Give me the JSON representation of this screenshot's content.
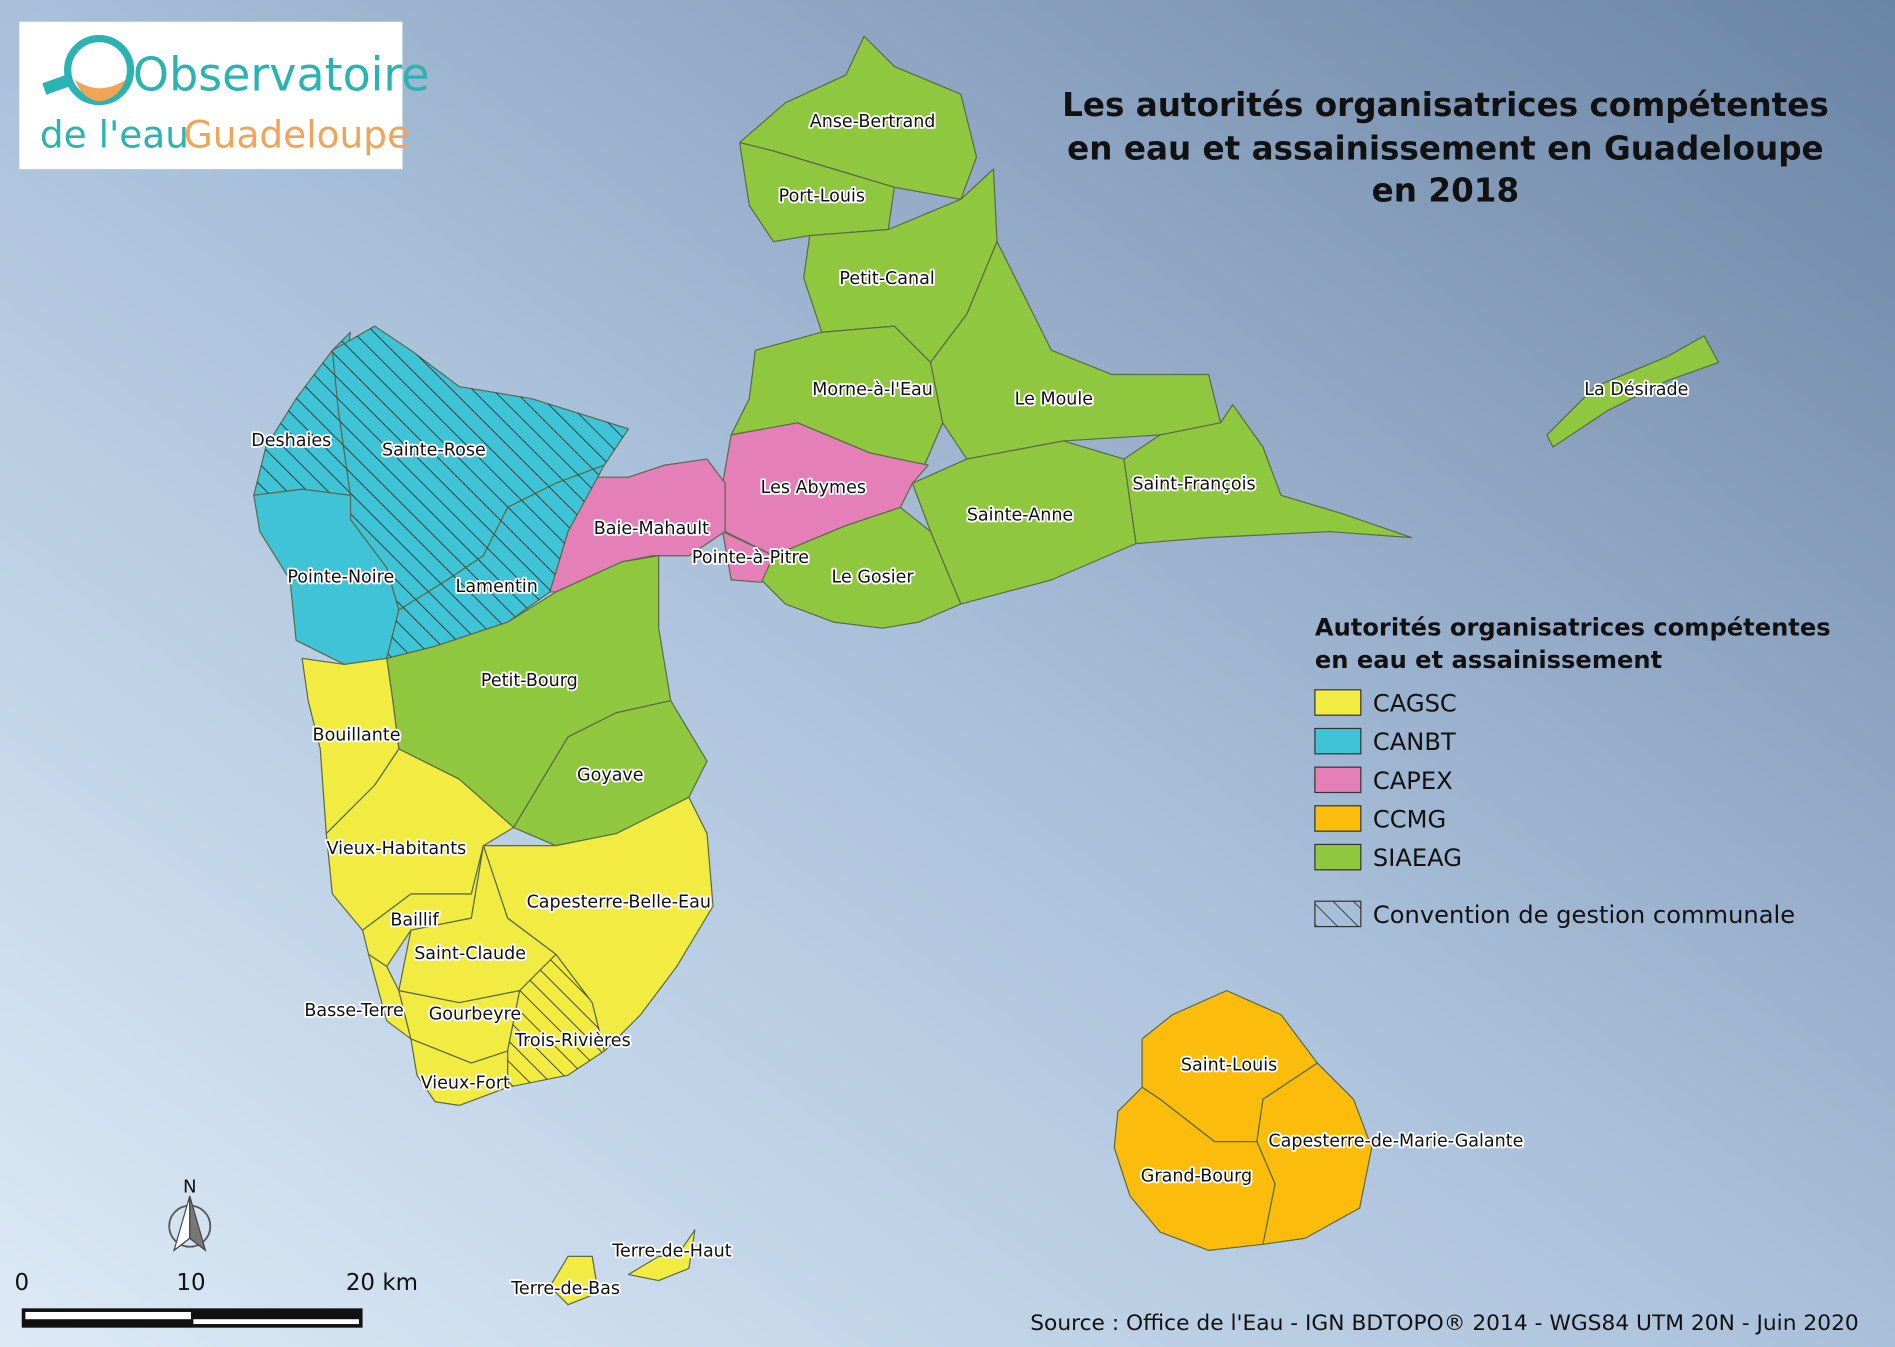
{
  "logo": {
    "line1": "Observatoire",
    "line2a": "de l'eau",
    "line2b": "Guadeloupe"
  },
  "title": {
    "line1": "Les autorités organisatrices compétentes",
    "line2": "en eau et assainissement en Guadeloupe",
    "line3": "en 2018"
  },
  "legend": {
    "title_line1": "Autorités organisatrices compétentes",
    "title_line2": "en eau et assainissement",
    "items": [
      {
        "label": "CAGSC",
        "color": "#f2eb41"
      },
      {
        "label": "CANBT",
        "color": "#3fc3d6"
      },
      {
        "label": "CAPEX",
        "color": "#e47fb8"
      },
      {
        "label": "CCMG",
        "color": "#fbbc0b"
      },
      {
        "label": "SIAEAG",
        "color": "#8fc73e"
      }
    ],
    "hatch_label": "Convention de gestion communale"
  },
  "communes": [
    {
      "name": "Anse-Bertrand",
      "authority": "SIAEAG"
    },
    {
      "name": "Port-Louis",
      "authority": "SIAEAG"
    },
    {
      "name": "Petit-Canal",
      "authority": "SIAEAG"
    },
    {
      "name": "Morne-à-l'Eau",
      "authority": "SIAEAG"
    },
    {
      "name": "Le Moule",
      "authority": "SIAEAG"
    },
    {
      "name": "Les Abymes",
      "authority": "CAPEX"
    },
    {
      "name": "Sainte-Anne",
      "authority": "SIAEAG"
    },
    {
      "name": "Saint-François",
      "authority": "SIAEAG"
    },
    {
      "name": "Le Gosier",
      "authority": "SIAEAG"
    },
    {
      "name": "Pointe-à-Pitre",
      "authority": "CAPEX"
    },
    {
      "name": "Baie-Mahault",
      "authority": "CAPEX"
    },
    {
      "name": "La Désirade",
      "authority": "SIAEAG"
    },
    {
      "name": "Deshaies",
      "authority": "CANBT",
      "convention": true
    },
    {
      "name": "Sainte-Rose",
      "authority": "CANBT",
      "convention": true
    },
    {
      "name": "Pointe-Noire",
      "authority": "CANBT"
    },
    {
      "name": "Lamentin",
      "authority": "CANBT",
      "convention": true
    },
    {
      "name": "Petit-Bourg",
      "authority": "SIAEAG"
    },
    {
      "name": "Goyave",
      "authority": "SIAEAG"
    },
    {
      "name": "Bouillante",
      "authority": "CAGSC"
    },
    {
      "name": "Vieux-Habitants",
      "authority": "CAGSC"
    },
    {
      "name": "Capesterre-Belle-Eau",
      "authority": "CAGSC"
    },
    {
      "name": "Baillif",
      "authority": "CAGSC"
    },
    {
      "name": "Saint-Claude",
      "authority": "CAGSC"
    },
    {
      "name": "Basse-Terre",
      "authority": "CAGSC"
    },
    {
      "name": "Gourbeyre",
      "authority": "CAGSC"
    },
    {
      "name": "Trois-Rivières",
      "authority": "CAGSC",
      "convention": true
    },
    {
      "name": "Vieux-Fort",
      "authority": "CAGSC"
    },
    {
      "name": "Terre-de-Haut",
      "authority": "CAGSC"
    },
    {
      "name": "Terre-de-Bas",
      "authority": "CAGSC"
    },
    {
      "name": "Saint-Louis",
      "authority": "CCMG"
    },
    {
      "name": "Capesterre-de-Marie-Galante",
      "authority": "CCMG"
    },
    {
      "name": "Grand-Bourg",
      "authority": "CCMG"
    }
  ],
  "north_arrow": {
    "label": "N"
  },
  "scale_bar": {
    "ticks": [
      "0",
      "10",
      "20 km"
    ]
  },
  "source": "Source : Office de l'Eau - IGN BDTOPO® 2014 - WGS84 UTM 20N - Juin 2020",
  "colors": {
    "sea_light": "#d8e7f4",
    "sea_dark": "#6f89a8"
  }
}
